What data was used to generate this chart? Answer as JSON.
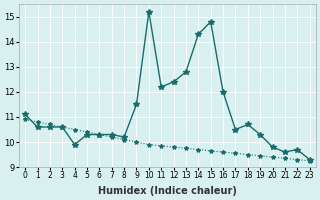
{
  "xlabel": "Humidex (Indice chaleur)",
  "ylabel": "",
  "bg_color": "#d8f0f0",
  "line_color": "#1a6b6b",
  "xlim": [
    -0.5,
    23.5
  ],
  "ylim": [
    9.0,
    15.5
  ],
  "yticks": [
    9,
    10,
    11,
    12,
    13,
    14,
    15
  ],
  "xticks": [
    0,
    1,
    2,
    3,
    4,
    5,
    6,
    7,
    8,
    9,
    10,
    11,
    12,
    13,
    14,
    15,
    16,
    17,
    18,
    19,
    20,
    21,
    22,
    23
  ],
  "line1_x": [
    0,
    1,
    2,
    3,
    4,
    5,
    6,
    7,
    8,
    9,
    10,
    11,
    12,
    13,
    14,
    15,
    16,
    17,
    18,
    19,
    20,
    21,
    22,
    23
  ],
  "line1_y": [
    11.1,
    10.6,
    10.6,
    10.6,
    9.9,
    10.3,
    10.3,
    10.3,
    10.2,
    11.5,
    15.2,
    12.2,
    12.4,
    12.8,
    14.3,
    14.8,
    12.0,
    10.5,
    10.7,
    10.3,
    9.8,
    9.6,
    9.7,
    9.3
  ],
  "line2_x": [
    0,
    1,
    2,
    3,
    4,
    5,
    6,
    7,
    8,
    9,
    10,
    11,
    12,
    13,
    14,
    15,
    16,
    17,
    18,
    19,
    20,
    21,
    22,
    23
  ],
  "line2_y": [
    10.9,
    10.8,
    10.7,
    10.6,
    10.5,
    10.4,
    10.3,
    10.2,
    10.1,
    10.0,
    9.9,
    9.85,
    9.8,
    9.75,
    9.7,
    9.65,
    9.6,
    9.55,
    9.5,
    9.45,
    9.4,
    9.35,
    9.3,
    9.25
  ]
}
